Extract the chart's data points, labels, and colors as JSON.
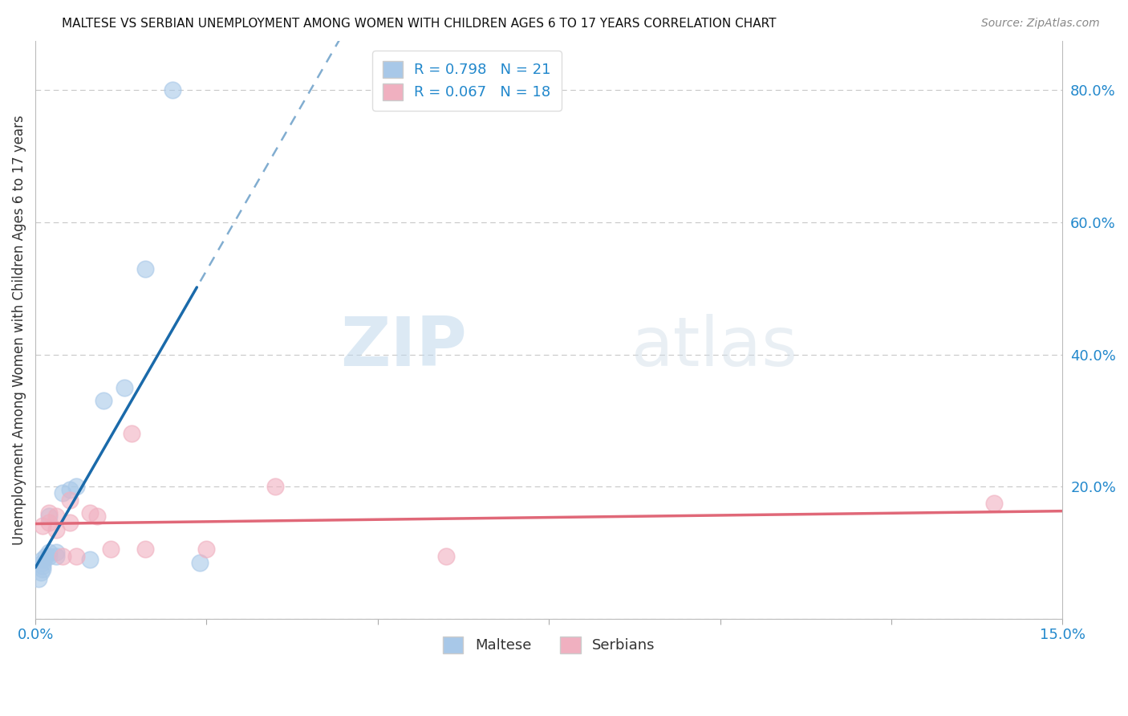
{
  "title": "MALTESE VS SERBIAN UNEMPLOYMENT AMONG WOMEN WITH CHILDREN AGES 6 TO 17 YEARS CORRELATION CHART",
  "source": "Source: ZipAtlas.com",
  "ylabel": "Unemployment Among Women with Children Ages 6 to 17 years",
  "x_min": 0.0,
  "x_max": 0.15,
  "y_min": 0.0,
  "y_max": 0.875,
  "x_ticks": [
    0.0,
    0.025,
    0.05,
    0.075,
    0.1,
    0.125,
    0.15
  ],
  "y_ticks_right": [
    0.0,
    0.2,
    0.4,
    0.6,
    0.8
  ],
  "y_tick_labels_right": [
    "",
    "20.0%",
    "40.0%",
    "60.0%",
    "80.0%"
  ],
  "maltese_x": [
    0.0005,
    0.0008,
    0.001,
    0.001,
    0.001,
    0.001,
    0.0015,
    0.002,
    0.002,
    0.002,
    0.003,
    0.003,
    0.004,
    0.005,
    0.006,
    0.008,
    0.01,
    0.013,
    0.016,
    0.02,
    0.024
  ],
  "maltese_y": [
    0.06,
    0.07,
    0.075,
    0.08,
    0.085,
    0.09,
    0.095,
    0.095,
    0.1,
    0.155,
    0.1,
    0.095,
    0.19,
    0.195,
    0.2,
    0.09,
    0.33,
    0.35,
    0.53,
    0.8,
    0.085
  ],
  "serbian_x": [
    0.001,
    0.002,
    0.002,
    0.003,
    0.003,
    0.004,
    0.005,
    0.005,
    0.006,
    0.008,
    0.009,
    0.011,
    0.014,
    0.016,
    0.025,
    0.035,
    0.06,
    0.14
  ],
  "serbian_y": [
    0.14,
    0.145,
    0.16,
    0.135,
    0.155,
    0.095,
    0.18,
    0.145,
    0.095,
    0.16,
    0.155,
    0.105,
    0.28,
    0.105,
    0.105,
    0.2,
    0.095,
    0.175
  ],
  "maltese_color": "#a8c8e8",
  "serbian_color": "#f0b0c0",
  "maltese_line_color": "#1a6aaa",
  "serbian_line_color": "#e06878",
  "maltese_R": 0.798,
  "maltese_N": 21,
  "serbian_R": 0.067,
  "serbian_N": 18,
  "legend_label_maltese": "Maltese",
  "legend_label_serbian": "Serbians",
  "watermark_zip": "ZIP",
  "watermark_atlas": "atlas",
  "background_color": "#ffffff",
  "grid_color": "#c8c8c8"
}
